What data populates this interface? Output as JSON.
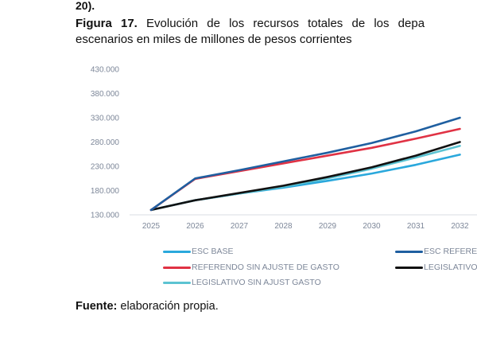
{
  "top_fragment": "20).",
  "figure": {
    "label": "Figura 17.",
    "title_line1": "Evolución de los recursos totales de los depa",
    "title_line2": "escenarios en miles de millones de pesos corrientes"
  },
  "source": {
    "label": "Fuente:",
    "text": "elaboración propia."
  },
  "chart_data": {
    "type": "line",
    "title": "",
    "xlabel": "",
    "ylabel": "",
    "x": [
      "2025",
      "2026",
      "2027",
      "2028",
      "2029",
      "2030",
      "2031",
      "2032"
    ],
    "yticks": [
      "130.000",
      "180.000",
      "230.000",
      "280.000",
      "330.000",
      "380.000",
      "430.000"
    ],
    "ylim": [
      130000,
      430000
    ],
    "grid": false,
    "legend_placement": "bottom",
    "series": [
      {
        "name": "ESC BASE",
        "color": "#2aa8dc",
        "values": [
          140000,
          160000,
          174000,
          186000,
          200000,
          215000,
          233000,
          254000
        ]
      },
      {
        "name": "ESC REFERENDO",
        "color": "#1f5fa0",
        "values": [
          140000,
          205000,
          222000,
          240000,
          258000,
          278000,
          302000,
          330000
        ]
      },
      {
        "name": "REFERENDO SIN AJUSTE DE GASTO",
        "color": "#e03244",
        "values": [
          140000,
          204000,
          220000,
          236000,
          252000,
          268000,
          287000,
          307000
        ]
      },
      {
        "name": "LEGISLATIVO",
        "color": "#111111",
        "values": [
          140000,
          160000,
          175000,
          190000,
          208000,
          228000,
          252000,
          280000
        ]
      },
      {
        "name": "LEGISLATIVO SIN AJUST GASTO",
        "color": "#5cc3d2",
        "values": [
          140000,
          160000,
          174000,
          188000,
          205000,
          225000,
          248000,
          272000
        ]
      }
    ]
  }
}
